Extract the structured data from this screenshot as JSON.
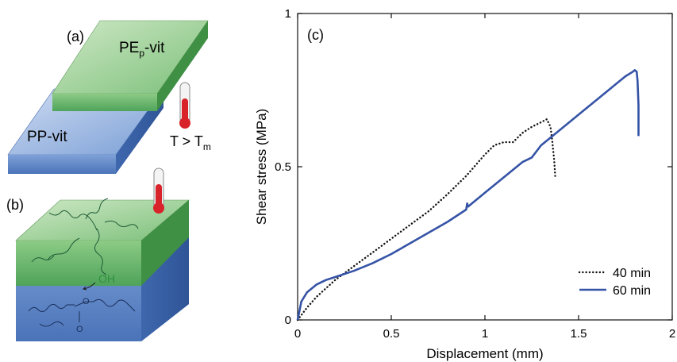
{
  "schematic": {
    "panel_a": {
      "label": "(a)",
      "top_slab": {
        "name_main": "PE",
        "name_sub": "p",
        "name_tail": "-vit",
        "color": "#6fb86f"
      },
      "bottom_slab": {
        "name": "PP-vit",
        "color": "#5f86c8"
      },
      "condition_main": "T > T",
      "condition_sub": "m",
      "thermometer_icon": "thermometer-icon"
    },
    "panel_b": {
      "label": "(b)",
      "hydroxyl": "OH",
      "carbonyl_oxygen": "O",
      "ester_oxygen": "O",
      "thermometer_icon": "thermometer-icon"
    }
  },
  "chart_data": {
    "type": "line",
    "panel_label": "(c)",
    "xlabel": "Displacement (mm)",
    "ylabel": "Shear stress (MPa)",
    "xlim": [
      0,
      2
    ],
    "ylim": [
      0,
      1
    ],
    "xticks": [
      0,
      0.5,
      1,
      1.5,
      2
    ],
    "xtick_labels": [
      "0",
      "0.5",
      "1",
      "1.5",
      "2"
    ],
    "yticks": [
      0,
      0.5,
      1
    ],
    "ytick_labels": [
      "0",
      "0.5",
      "1"
    ],
    "grid": false,
    "legend_position": "bottom-right",
    "series": [
      {
        "name": "40 min",
        "color": "#111111",
        "style": "dotted",
        "x": [
          0,
          0.05,
          0.1,
          0.2,
          0.3,
          0.4,
          0.5,
          0.6,
          0.7,
          0.8,
          0.9,
          1.0,
          1.05,
          1.1,
          1.15,
          1.2,
          1.25,
          1.3,
          1.33,
          1.35,
          1.36,
          1.37,
          1.375
        ],
        "y": [
          0,
          0.04,
          0.075,
          0.13,
          0.175,
          0.22,
          0.265,
          0.31,
          0.355,
          0.41,
          0.47,
          0.54,
          0.57,
          0.58,
          0.58,
          0.61,
          0.63,
          0.645,
          0.655,
          0.63,
          0.58,
          0.52,
          0.47
        ]
      },
      {
        "name": "60 min",
        "color": "#3553a6",
        "style": "solid",
        "x": [
          0,
          0.02,
          0.05,
          0.1,
          0.15,
          0.2,
          0.3,
          0.4,
          0.5,
          0.6,
          0.7,
          0.8,
          0.9,
          0.905,
          0.91,
          1.0,
          1.1,
          1.2,
          1.25,
          1.3,
          1.4,
          1.5,
          1.6,
          1.7,
          1.75,
          1.79,
          1.8,
          1.81,
          1.815,
          1.82,
          1.82
        ],
        "y": [
          0,
          0.06,
          0.09,
          0.115,
          0.13,
          0.14,
          0.16,
          0.185,
          0.215,
          0.25,
          0.285,
          0.32,
          0.36,
          0.38,
          0.37,
          0.415,
          0.465,
          0.515,
          0.53,
          0.57,
          0.62,
          0.67,
          0.72,
          0.77,
          0.795,
          0.81,
          0.815,
          0.81,
          0.78,
          0.7,
          0.6
        ]
      }
    ]
  }
}
